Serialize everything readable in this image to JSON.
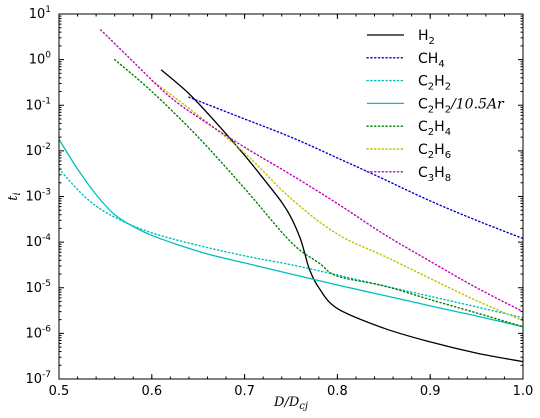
{
  "chart_data": {
    "type": "line",
    "xlabel": "D/D_cj",
    "ylabel": "t_i",
    "xlim": [
      0.5,
      1.0
    ],
    "ylim": [
      1e-07,
      10
    ],
    "yscale": "log",
    "x_ticks": [
      "0.5",
      "0.6",
      "0.7",
      "0.8",
      "0.9",
      "1.0"
    ],
    "y_ticks": [
      {
        "base": "10",
        "exp": "1"
      },
      {
        "base": "10",
        "exp": "0"
      },
      {
        "base": "10",
        "exp": "-1"
      },
      {
        "base": "10",
        "exp": "-2"
      },
      {
        "base": "10",
        "exp": "-3"
      },
      {
        "base": "10",
        "exp": "-4"
      },
      {
        "base": "10",
        "exp": "-5"
      },
      {
        "base": "10",
        "exp": "-6"
      },
      {
        "base": "10",
        "exp": "-7"
      }
    ],
    "legend_position": "top-right",
    "grid": false,
    "series": [
      {
        "name": "H2",
        "label_main": "H",
        "label_sub": "2",
        "label_rest": "",
        "color": "#000000",
        "style": "solid",
        "x": [
          0.61,
          0.64,
          0.67,
          0.7,
          0.72,
          0.74,
          0.75,
          0.76,
          0.765,
          0.77,
          0.78,
          0.8,
          0.85,
          0.9,
          0.95,
          1.0
        ],
        "y": [
          0.6,
          0.18,
          0.04,
          0.008,
          0.0025,
          0.00075,
          0.00035,
          0.00012,
          5.5e-05,
          2.5e-05,
          1e-05,
          3.5e-06,
          1.3e-06,
          6.5e-07,
          3.7e-07,
          2.4e-07
        ]
      },
      {
        "name": "CH4",
        "label_main": "CH",
        "label_sub": "4",
        "label_rest": "",
        "color": "#0000cc",
        "style": "dotted",
        "x": [
          0.64,
          0.7,
          0.75,
          0.8,
          0.85,
          0.9,
          0.95,
          1.0
        ],
        "y": [
          0.15,
          0.05,
          0.02,
          0.007,
          0.0024,
          0.0008,
          0.0003,
          0.00012
        ]
      },
      {
        "name": "C2H2",
        "label_main": "C",
        "label_sub": "2",
        "label_rest": "H2",
        "color": "#00bfbf",
        "style": "dotted",
        "x": [
          0.5,
          0.53,
          0.56,
          0.6,
          0.65,
          0.7,
          0.75,
          0.8,
          0.85,
          0.9,
          0.95,
          1.0
        ],
        "y": [
          0.004,
          0.0009,
          0.00035,
          0.00016,
          8.5e-05,
          5e-05,
          3.2e-05,
          1.9e-05,
          1.1e-05,
          6.5e-06,
          3.8e-06,
          2.2e-06
        ]
      },
      {
        "name": "C2H2/10.5Ar",
        "label_main": "C",
        "label_sub": "2",
        "label_rest": "H2Ar",
        "color": "#00bfbf",
        "style": "solid",
        "x": [
          0.5,
          0.52,
          0.54,
          0.56,
          0.58,
          0.6,
          0.63,
          0.66,
          0.7,
          0.75,
          0.8,
          0.85,
          0.9,
          0.95,
          1.0
        ],
        "y": [
          0.018,
          0.004,
          0.0011,
          0.0004,
          0.00022,
          0.00014,
          8.5e-05,
          5.5e-05,
          3.5e-05,
          2e-05,
          1.15e-05,
          6.8e-06,
          4e-06,
          2.4e-06,
          1.4e-06
        ]
      },
      {
        "name": "C2H4",
        "label_main": "C",
        "label_sub": "2",
        "label_rest": "H4",
        "color": "#007f00",
        "style": "dotted",
        "x": [
          0.56,
          0.6,
          0.65,
          0.7,
          0.75,
          0.78,
          0.8,
          0.85,
          0.9,
          0.95,
          1.0
        ],
        "y": [
          1.0,
          0.2,
          0.02,
          0.0015,
          0.0001,
          3.5e-05,
          1.8e-05,
          1.1e-05,
          5.5e-06,
          2.8e-06,
          1.4e-06
        ]
      },
      {
        "name": "C2H6",
        "label_main": "C",
        "label_sub": "2",
        "label_rest": "H6",
        "color": "#bfbf00",
        "style": "dotted",
        "x": [
          0.6,
          0.65,
          0.7,
          0.75,
          0.8,
          0.85,
          0.9,
          0.95,
          1.0
        ],
        "y": [
          0.35,
          0.06,
          0.009,
          0.0009,
          0.00015,
          5e-05,
          1.6e-05,
          5.2e-06,
          1.9e-06
        ]
      },
      {
        "name": "C3H8",
        "label_main": "C",
        "label_sub": "3",
        "label_rest": "H8",
        "color": "#bf00bf",
        "style": "dotted",
        "x": [
          0.545,
          0.58,
          0.62,
          0.66,
          0.7,
          0.75,
          0.8,
          0.85,
          0.9,
          0.95,
          1.0
        ],
        "y": [
          4.5,
          0.9,
          0.15,
          0.04,
          0.012,
          0.003,
          0.0007,
          0.00015,
          3.8e-05,
          1e-05,
          3e-06
        ]
      }
    ]
  }
}
